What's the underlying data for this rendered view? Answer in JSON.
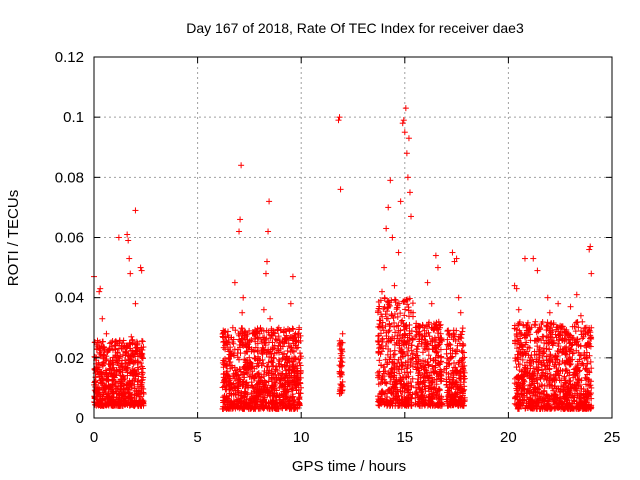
{
  "chart_data": {
    "type": "scatter",
    "title": "Day 167 of 2018, Rate Of TEC Index for receiver dae3",
    "xlabel": "GPS time / hours",
    "ylabel": "ROTI / TECUs",
    "xlim": [
      0,
      25
    ],
    "ylim": [
      0,
      0.12
    ],
    "grid": true,
    "marker": "+",
    "marker_color": "#ff0000",
    "x_ticks": [
      {
        "value": 0,
        "label": "0"
      },
      {
        "value": 5,
        "label": "5"
      },
      {
        "value": 10,
        "label": "10"
      },
      {
        "value": 15,
        "label": "15"
      },
      {
        "value": 20,
        "label": "20"
      },
      {
        "value": 25,
        "label": "25"
      }
    ],
    "y_ticks": [
      {
        "value": 0,
        "label": "0"
      },
      {
        "value": 0.02,
        "label": "0.02"
      },
      {
        "value": 0.04,
        "label": "0.04"
      },
      {
        "value": 0.06,
        "label": "0.06"
      },
      {
        "value": 0.08,
        "label": "0.08"
      },
      {
        "value": 0.1,
        "label": "0.1"
      },
      {
        "value": 0.12,
        "label": "0.12"
      }
    ],
    "series": [
      {
        "name": "ROTI",
        "points": [
          [
            0.0,
            0.047
          ],
          [
            0.05,
            0.012
          ],
          [
            0.1,
            0.018
          ],
          [
            0.15,
            0.008
          ],
          [
            0.2,
            0.025
          ],
          [
            0.25,
            0.042
          ],
          [
            0.3,
            0.043
          ],
          [
            0.35,
            0.015
          ],
          [
            0.4,
            0.033
          ],
          [
            0.45,
            0.01
          ],
          [
            0.5,
            0.022
          ],
          [
            0.55,
            0.006
          ],
          [
            0.6,
            0.028
          ],
          [
            0.7,
            0.014
          ],
          [
            0.8,
            0.019
          ],
          [
            0.9,
            0.011
          ],
          [
            1.0,
            0.024
          ],
          [
            1.1,
            0.016
          ],
          [
            1.2,
            0.06
          ],
          [
            1.3,
            0.009
          ],
          [
            1.4,
            0.021
          ],
          [
            1.5,
            0.013
          ],
          [
            1.6,
            0.061
          ],
          [
            1.65,
            0.059
          ],
          [
            1.7,
            0.053
          ],
          [
            1.75,
            0.048
          ],
          [
            1.8,
            0.027
          ],
          [
            1.9,
            0.018
          ],
          [
            2.0,
            0.038
          ],
          [
            2.0,
            0.069
          ],
          [
            2.1,
            0.012
          ],
          [
            2.2,
            0.022
          ],
          [
            2.25,
            0.05
          ],
          [
            2.3,
            0.049
          ],
          [
            2.35,
            0.015
          ],
          [
            2.4,
            0.008
          ],
          [
            6.3,
            0.012
          ],
          [
            6.5,
            0.02
          ],
          [
            6.7,
            0.03
          ],
          [
            6.8,
            0.045
          ],
          [
            6.9,
            0.016
          ],
          [
            7.0,
            0.062
          ],
          [
            7.05,
            0.066
          ],
          [
            7.1,
            0.084
          ],
          [
            7.15,
            0.035
          ],
          [
            7.2,
            0.04
          ],
          [
            7.3,
            0.01
          ],
          [
            7.4,
            0.022
          ],
          [
            7.6,
            0.018
          ],
          [
            7.8,
            0.014
          ],
          [
            8.0,
            0.028
          ],
          [
            8.2,
            0.036
          ],
          [
            8.3,
            0.048
          ],
          [
            8.35,
            0.052
          ],
          [
            8.4,
            0.062
          ],
          [
            8.45,
            0.072
          ],
          [
            8.5,
            0.033
          ],
          [
            8.7,
            0.012
          ],
          [
            8.9,
            0.024
          ],
          [
            9.1,
            0.017
          ],
          [
            9.3,
            0.026
          ],
          [
            9.5,
            0.038
          ],
          [
            9.6,
            0.047
          ],
          [
            9.7,
            0.02
          ],
          [
            9.8,
            0.011
          ],
          [
            9.9,
            0.03
          ],
          [
            11.8,
            0.099
          ],
          [
            11.85,
            0.1
          ],
          [
            11.9,
            0.076
          ],
          [
            11.9,
            0.01
          ],
          [
            11.95,
            0.015
          ],
          [
            11.95,
            0.02
          ],
          [
            12.0,
            0.028
          ],
          [
            12.0,
            0.025
          ],
          [
            12.0,
            0.012
          ],
          [
            13.7,
            0.015
          ],
          [
            13.8,
            0.03
          ],
          [
            13.9,
            0.042
          ],
          [
            14.0,
            0.05
          ],
          [
            14.1,
            0.063
          ],
          [
            14.2,
            0.07
          ],
          [
            14.3,
            0.079
          ],
          [
            14.4,
            0.06
          ],
          [
            14.5,
            0.044
          ],
          [
            14.6,
            0.025
          ],
          [
            14.7,
            0.055
          ],
          [
            14.8,
            0.072
          ],
          [
            14.9,
            0.098
          ],
          [
            14.95,
            0.099
          ],
          [
            15.0,
            0.095
          ],
          [
            15.05,
            0.103
          ],
          [
            15.1,
            0.088
          ],
          [
            15.15,
            0.08
          ],
          [
            15.2,
            0.093
          ],
          [
            15.25,
            0.075
          ],
          [
            15.3,
            0.067
          ],
          [
            15.4,
            0.035
          ],
          [
            15.5,
            0.018
          ],
          [
            15.7,
            0.028
          ],
          [
            15.9,
            0.012
          ],
          [
            16.1,
            0.045
          ],
          [
            16.3,
            0.038
          ],
          [
            16.5,
            0.054
          ],
          [
            16.6,
            0.05
          ],
          [
            16.7,
            0.03
          ],
          [
            16.9,
            0.016
          ],
          [
            17.1,
            0.024
          ],
          [
            17.3,
            0.055
          ],
          [
            17.4,
            0.052
          ],
          [
            17.5,
            0.053
          ],
          [
            17.6,
            0.04
          ],
          [
            17.7,
            0.035
          ],
          [
            17.8,
            0.02
          ],
          [
            20.3,
            0.044
          ],
          [
            20.4,
            0.043
          ],
          [
            20.5,
            0.036
          ],
          [
            20.6,
            0.025
          ],
          [
            20.7,
            0.012
          ],
          [
            20.8,
            0.053
          ],
          [
            20.9,
            0.03
          ],
          [
            21.1,
            0.018
          ],
          [
            21.2,
            0.053
          ],
          [
            21.3,
            0.032
          ],
          [
            21.4,
            0.049
          ],
          [
            21.5,
            0.02
          ],
          [
            21.7,
            0.027
          ],
          [
            21.9,
            0.04
          ],
          [
            22.0,
            0.035
          ],
          [
            22.2,
            0.014
          ],
          [
            22.4,
            0.038
          ],
          [
            22.6,
            0.022
          ],
          [
            22.8,
            0.028
          ],
          [
            23.0,
            0.037
          ],
          [
            23.2,
            0.015
          ],
          [
            23.3,
            0.041
          ],
          [
            23.5,
            0.034
          ],
          [
            23.7,
            0.024
          ],
          [
            23.8,
            0.018
          ],
          [
            23.9,
            0.056
          ],
          [
            23.95,
            0.057
          ],
          [
            24.0,
            0.048
          ],
          [
            24.0,
            0.03
          ],
          [
            24.0,
            0.01
          ]
        ]
      }
    ],
    "dense_clusters": [
      {
        "x_range": [
          0.0,
          2.4
        ],
        "y_range": [
          0.004,
          0.026
        ]
      },
      {
        "x_range": [
          6.2,
          10.0
        ],
        "y_range": [
          0.003,
          0.03
        ]
      },
      {
        "x_range": [
          11.85,
          12.0
        ],
        "y_range": [
          0.008,
          0.028
        ]
      },
      {
        "x_range": [
          13.7,
          15.4
        ],
        "y_range": [
          0.004,
          0.04
        ]
      },
      {
        "x_range": [
          15.5,
          16.8
        ],
        "y_range": [
          0.004,
          0.032
        ]
      },
      {
        "x_range": [
          17.0,
          17.9
        ],
        "y_range": [
          0.004,
          0.03
        ]
      },
      {
        "x_range": [
          20.3,
          24.0
        ],
        "y_range": [
          0.003,
          0.032
        ]
      }
    ]
  }
}
